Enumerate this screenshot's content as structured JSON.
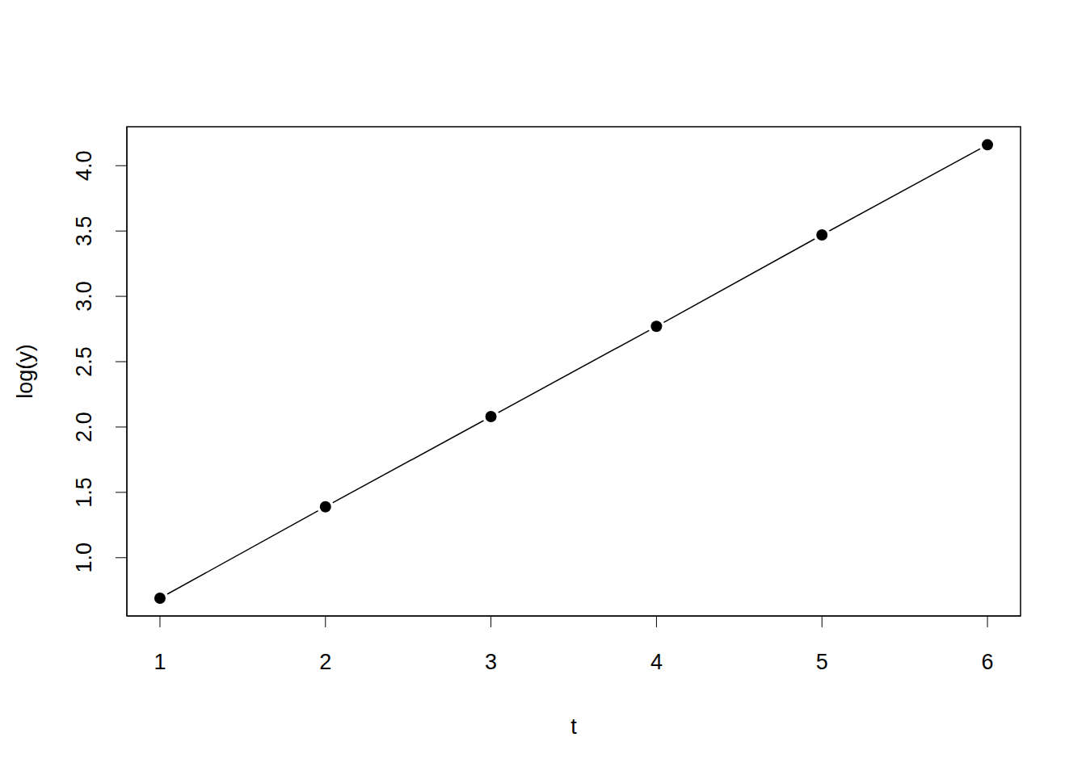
{
  "chart_data": {
    "type": "line",
    "x": [
      1,
      2,
      3,
      4,
      5,
      6
    ],
    "values": [
      0.69,
      1.39,
      2.08,
      2.77,
      3.47,
      4.16
    ],
    "color": "#000000",
    "marker": "circle",
    "line_style": "solid",
    "xlabel": "t",
    "ylabel": "log(y)",
    "xlim": [
      0.8,
      6.2
    ],
    "ylim": [
      0.554,
      4.298
    ],
    "xticks": [
      1,
      2,
      3,
      4,
      5,
      6
    ],
    "yticks": [
      {
        "value": 1,
        "label": "1.0"
      },
      1.5,
      {
        "value": 2,
        "label": "2.0"
      },
      2.5,
      {
        "value": 3,
        "label": "3.0"
      },
      3.5,
      {
        "value": 4,
        "label": "4.0"
      }
    ]
  }
}
